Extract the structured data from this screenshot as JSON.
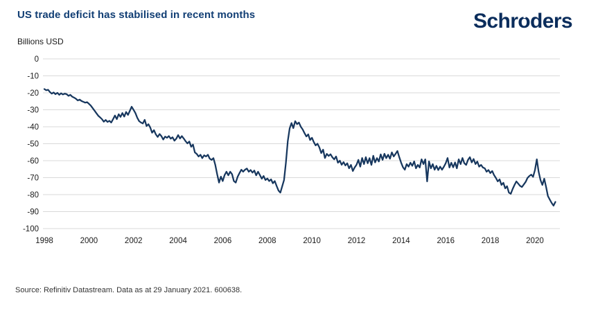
{
  "header": {
    "title": "US trade deficit has stabilised in recent months",
    "logo": {
      "part1": "Schr",
      "o": "o",
      "part2": "ders"
    }
  },
  "chart_data": {
    "type": "line",
    "title": "US trade deficit has stabilised in recent months",
    "ylabel": "Billions USD",
    "xlabel": "",
    "ylim": [
      -100,
      0
    ],
    "y_ticks": [
      0,
      -10,
      -20,
      -30,
      -40,
      -50,
      -60,
      -70,
      -80,
      -90,
      -100
    ],
    "x_ticks": [
      1998,
      2000,
      2002,
      2004,
      2006,
      2008,
      2010,
      2012,
      2014,
      2016,
      2018,
      2020
    ],
    "grid": "horizontal",
    "legend": "none",
    "line_color": "#17375e",
    "grid_color": "#d9d9d9",
    "series": [
      {
        "name": "US trade deficit (Billions USD)",
        "frequency": "monthly",
        "start": "1998-01",
        "end": "2020-12",
        "values": [
          -17.8,
          -18.5,
          -18.2,
          -19.5,
          -20.5,
          -19.8,
          -20.8,
          -20.0,
          -21.2,
          -20.3,
          -21.0,
          -20.5,
          -20.8,
          -21.8,
          -21.2,
          -22.3,
          -22.8,
          -23.5,
          -24.5,
          -24.0,
          -24.8,
          -25.3,
          -25.8,
          -25.5,
          -26.5,
          -27.5,
          -29.0,
          -30.5,
          -32.0,
          -33.5,
          -34.5,
          -35.5,
          -37.0,
          -36.0,
          -37.2,
          -36.5,
          -37.5,
          -35.5,
          -33.4,
          -35.5,
          -32.6,
          -34.2,
          -31.9,
          -34.0,
          -31.3,
          -33.0,
          -30.6,
          -28.2,
          -30.0,
          -31.9,
          -34.7,
          -36.7,
          -37.5,
          -38.1,
          -35.9,
          -39.6,
          -38.5,
          -40.5,
          -43.5,
          -42.0,
          -44.5,
          -46.0,
          -44.3,
          -45.5,
          -47.5,
          -45.8,
          -46.5,
          -45.5,
          -47.0,
          -46.2,
          -48.2,
          -47.0,
          -44.9,
          -46.9,
          -45.5,
          -46.9,
          -48.5,
          -49.8,
          -48.7,
          -51.8,
          -50.5,
          -55.1,
          -56.0,
          -57.5,
          -56.5,
          -58.5,
          -56.8,
          -57.5,
          -56.5,
          -58.8,
          -59.5,
          -58.5,
          -62.5,
          -68.0,
          -72.9,
          -69.4,
          -72.0,
          -68.5,
          -66.5,
          -68.6,
          -66.5,
          -68.0,
          -72.0,
          -72.9,
          -69.5,
          -67.3,
          -65.3,
          -66.5,
          -65.3,
          -64.6,
          -66.5,
          -65.5,
          -67.0,
          -65.8,
          -68.6,
          -66.5,
          -68.5,
          -70.6,
          -69.0,
          -71.4,
          -70.5,
          -72.0,
          -71.0,
          -73.3,
          -72.0,
          -74.9,
          -77.6,
          -78.8,
          -75.0,
          -71.4,
          -61.2,
          -48.5,
          -41.0,
          -37.8,
          -40.8,
          -36.7,
          -38.5,
          -37.5,
          -40.0,
          -41.6,
          -43.7,
          -45.7,
          -44.5,
          -47.8,
          -46.5,
          -49.0,
          -51.0,
          -50.0,
          -52.2,
          -55.5,
          -53.5,
          -58.4,
          -56.0,
          -57.2,
          -56.2,
          -58.0,
          -59.2,
          -57.5,
          -61.2,
          -60.0,
          -62.4,
          -60.8,
          -62.8,
          -61.5,
          -64.5,
          -62.5,
          -66.1,
          -64.0,
          -62.4,
          -59.5,
          -63.5,
          -58.4,
          -62.0,
          -57.9,
          -61.5,
          -58.5,
          -62.5,
          -57.1,
          -61.0,
          -58.5,
          -60.5,
          -56.3,
          -59.5,
          -55.9,
          -58.5,
          -56.5,
          -58.8,
          -55.1,
          -57.5,
          -56.0,
          -54.3,
          -57.9,
          -61.2,
          -63.9,
          -65.3,
          -62.0,
          -63.5,
          -61.2,
          -63.0,
          -60.4,
          -64.5,
          -62.5,
          -64.0,
          -59.2,
          -62.0,
          -59.2,
          -72.2,
          -60.4,
          -64.5,
          -62.0,
          -65.3,
          -63.0,
          -65.5,
          -63.5,
          -65.3,
          -63.5,
          -61.5,
          -58.4,
          -64.0,
          -61.2,
          -63.9,
          -61.0,
          -64.5,
          -59.2,
          -62.0,
          -58.4,
          -61.5,
          -62.5,
          -59.5,
          -57.9,
          -61.0,
          -59.0,
          -62.0,
          -60.5,
          -63.5,
          -62.5,
          -64.0,
          -64.5,
          -66.5,
          -65.5,
          -67.3,
          -66.1,
          -68.5,
          -70.2,
          -72.2,
          -71.0,
          -74.3,
          -73.0,
          -76.3,
          -75.0,
          -78.8,
          -79.5,
          -76.7,
          -74.3,
          -72.2,
          -73.5,
          -74.8,
          -75.5,
          -74.0,
          -72.5,
          -70.2,
          -69.0,
          -68.2,
          -69.5,
          -65.5,
          -59.2,
          -66.5,
          -71.4,
          -74.3,
          -70.6,
          -75.5,
          -80.8,
          -82.9,
          -84.9,
          -86.5,
          -84.3
        ]
      }
    ]
  },
  "footer": {
    "source": "Source: Refinitiv Datastream. Data as at 29 January 2021. 600638."
  }
}
